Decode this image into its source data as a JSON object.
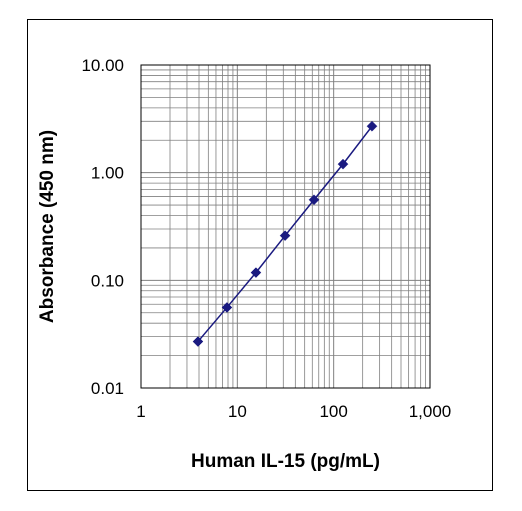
{
  "chart_data": {
    "type": "scatter",
    "title": "",
    "xlabel": "Human IL-15 (pg/mL)",
    "ylabel": "Absorbance (450 nm)",
    "xscale": "log",
    "yscale": "log",
    "xlim": [
      1,
      1000
    ],
    "ylim": [
      0.01,
      10
    ],
    "xticks": [
      1,
      10,
      100,
      1000
    ],
    "xtick_labels": [
      "1",
      "10",
      "100",
      "1,000"
    ],
    "yticks": [
      0.01,
      0.1,
      1,
      10
    ],
    "ytick_labels": [
      "0.01",
      "0.10",
      "1.00",
      "10.00"
    ],
    "grid": true,
    "legend": "none",
    "series": [
      {
        "x": [
          3.9,
          7.8,
          15.6,
          31.3,
          62.5,
          125,
          250
        ],
        "y": [
          0.027,
          0.056,
          0.118,
          0.26,
          0.56,
          1.2,
          2.7
        ],
        "color": "#1a1a80",
        "marker": "diamond",
        "line": true
      }
    ]
  }
}
